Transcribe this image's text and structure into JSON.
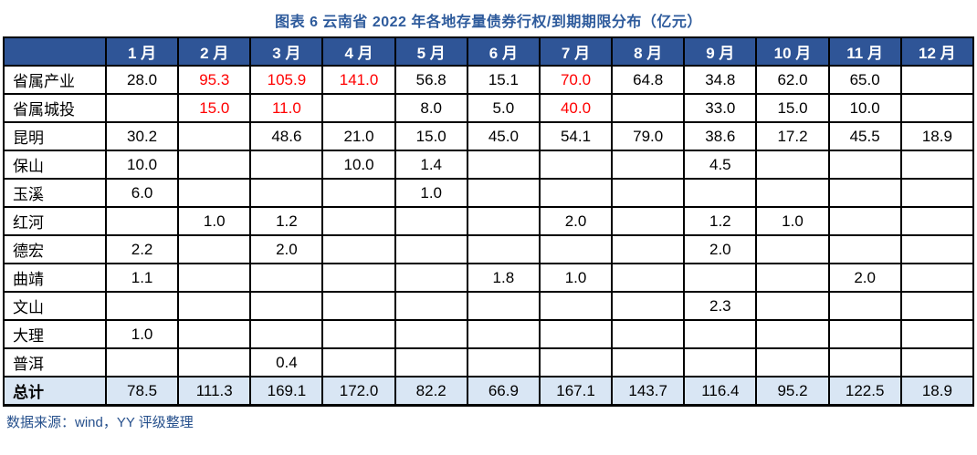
{
  "title": "图表 6  云南省 2022 年各地存量债券行权/到期期限分布（亿元）",
  "footer": {
    "source": "数据来源：wind，YY 评级整理"
  },
  "colors": {
    "header_bg": "#2f5597",
    "header_text": "#ffffff",
    "total_row_bg": "#d9e6f4",
    "title_text": "#2e5b9c",
    "footer_text": "#26508c",
    "highlight_red": "#ff0000",
    "grid_border": "#000000"
  },
  "chart_data": {
    "type": "table",
    "title": "图表 6  云南省 2022 年各地存量债券行权/到期期限分布（亿元）",
    "columns": [
      "1 月",
      "2 月",
      "3 月",
      "4 月",
      "5 月",
      "6 月",
      "7 月",
      "8 月",
      "9 月",
      "10 月",
      "11 月",
      "12 月"
    ],
    "rows": [
      {
        "label": "省属产业",
        "values": [
          "28.0",
          "95.3",
          "105.9",
          "141.0",
          "56.8",
          "15.1",
          "70.0",
          "64.8",
          "34.8",
          "62.0",
          "65.0",
          ""
        ],
        "red": [
          1,
          2,
          3,
          6
        ]
      },
      {
        "label": "省属城投",
        "values": [
          "",
          "15.0",
          "11.0",
          "",
          "8.0",
          "5.0",
          "40.0",
          "",
          "33.0",
          "15.0",
          "10.0",
          ""
        ],
        "red": [
          1,
          2,
          6
        ]
      },
      {
        "label": "昆明",
        "values": [
          "30.2",
          "",
          "48.6",
          "21.0",
          "15.0",
          "45.0",
          "54.1",
          "79.0",
          "38.6",
          "17.2",
          "45.5",
          "18.9"
        ],
        "red": []
      },
      {
        "label": "保山",
        "values": [
          "10.0",
          "",
          "",
          "10.0",
          "1.4",
          "",
          "",
          "",
          "4.5",
          "",
          "",
          ""
        ],
        "red": []
      },
      {
        "label": "玉溪",
        "values": [
          "6.0",
          "",
          "",
          "",
          "1.0",
          "",
          "",
          "",
          "",
          "",
          "",
          ""
        ],
        "red": []
      },
      {
        "label": "红河",
        "values": [
          "",
          "1.0",
          "1.2",
          "",
          "",
          "",
          "2.0",
          "",
          "1.2",
          "1.0",
          "",
          ""
        ],
        "red": []
      },
      {
        "label": "德宏",
        "values": [
          "2.2",
          "",
          "2.0",
          "",
          "",
          "",
          "",
          "",
          "2.0",
          "",
          "",
          ""
        ],
        "red": []
      },
      {
        "label": "曲靖",
        "values": [
          "1.1",
          "",
          "",
          "",
          "",
          "1.8",
          "1.0",
          "",
          "",
          "",
          "2.0",
          ""
        ],
        "red": []
      },
      {
        "label": "文山",
        "values": [
          "",
          "",
          "",
          "",
          "",
          "",
          "",
          "",
          "2.3",
          "",
          "",
          ""
        ],
        "red": []
      },
      {
        "label": "大理",
        "values": [
          "1.0",
          "",
          "",
          "",
          "",
          "",
          "",
          "",
          "",
          "",
          "",
          ""
        ],
        "red": []
      },
      {
        "label": "普洱",
        "values": [
          "",
          "",
          "0.4",
          "",
          "",
          "",
          "",
          "",
          "",
          "",
          "",
          ""
        ],
        "red": []
      }
    ],
    "total_row": {
      "label": "总计",
      "values": [
        "78.5",
        "111.3",
        "169.1",
        "172.0",
        "82.2",
        "66.9",
        "167.1",
        "143.7",
        "116.4",
        "95.2",
        "122.5",
        "18.9"
      ]
    }
  }
}
